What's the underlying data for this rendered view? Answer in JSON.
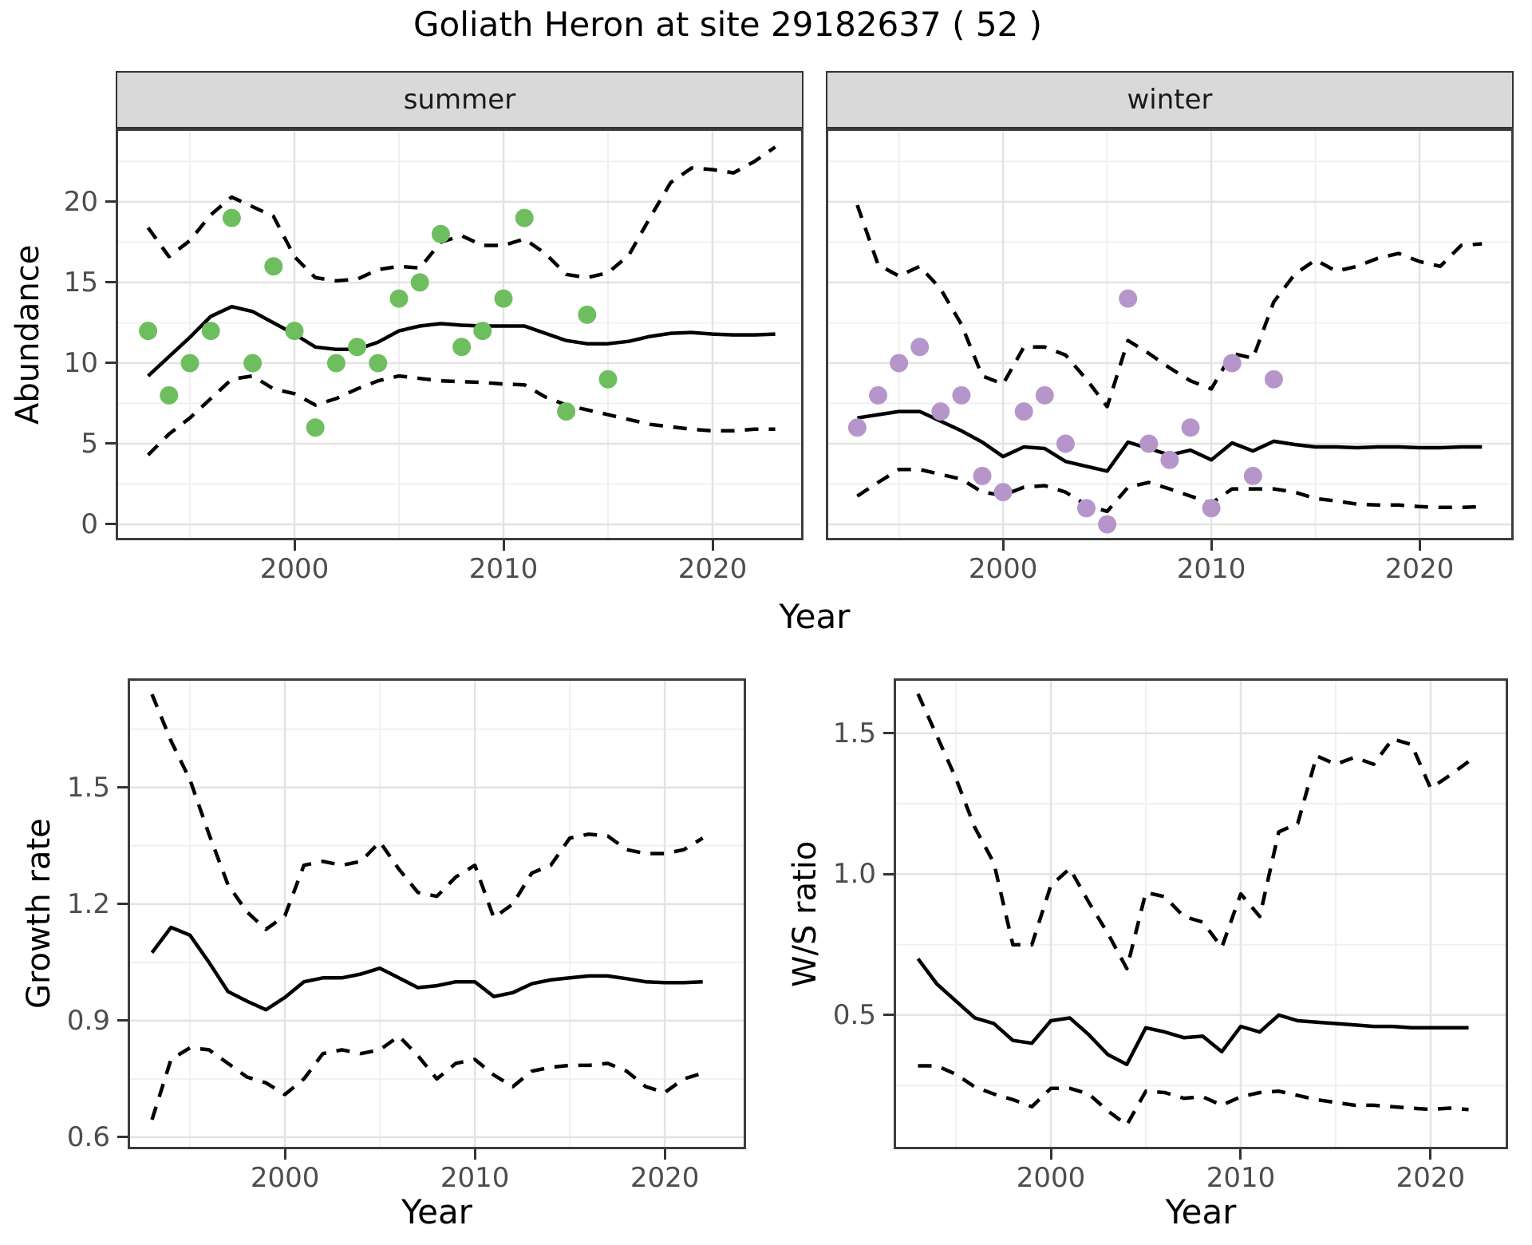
{
  "title": "Goliath Heron at site 29182637 ( 52 )",
  "colors": {
    "summer_points": "#6ebe5f",
    "winter_points": "#b696ca",
    "line": "#000000",
    "grid_major": "#e3e3e3",
    "grid_minor": "#f0f0f0",
    "panel_border": "#3d3d3d",
    "strip_background": "#d9d9d9",
    "tick_text": "#4d4d4d"
  },
  "chart_data": [
    {
      "id": "abundance-summer",
      "type": "line",
      "facet_label": "summer",
      "xlabel": "Year",
      "ylabel": "Abundance",
      "xlim": [
        1991.45,
        2024.35
      ],
      "ylim": [
        -0.99,
        24.55
      ],
      "x_ticks": {
        "values": [
          2000,
          2010,
          2020
        ],
        "labels": [
          "2000",
          "2010",
          "2020"
        ]
      },
      "x_minor": [
        1995,
        2005,
        2015
      ],
      "y_ticks": {
        "values": [
          0,
          5,
          10,
          15,
          20
        ],
        "labels": [
          "0",
          "5",
          "10",
          "15",
          "20"
        ]
      },
      "y_minor": [
        2.5,
        7.5,
        12.5,
        17.5,
        22.5
      ],
      "x": [
        1993,
        1994,
        1995,
        1996,
        1997,
        1998,
        1999,
        2000,
        2001,
        2002,
        2003,
        2004,
        2005,
        2006,
        2007,
        2008,
        2009,
        2010,
        2011,
        2012,
        2013,
        2014,
        2015,
        2016,
        2017,
        2018,
        2019,
        2020,
        2021,
        2022,
        2023
      ],
      "series": [
        {
          "name": "mean",
          "style": "solid",
          "values": [
            9.2,
            10.4,
            11.6,
            12.9,
            13.5,
            13.2,
            12.5,
            11.8,
            11.0,
            10.85,
            10.85,
            11.3,
            12.0,
            12.3,
            12.45,
            12.35,
            12.3,
            12.3,
            12.3,
            11.85,
            11.4,
            11.2,
            11.2,
            11.35,
            11.65,
            11.85,
            11.9,
            11.8,
            11.75,
            11.75,
            11.8
          ]
        },
        {
          "name": "upper_ci",
          "style": "dashed",
          "values": [
            18.4,
            16.6,
            17.6,
            19.2,
            20.3,
            19.7,
            19.1,
            16.6,
            15.3,
            15.1,
            15.2,
            15.8,
            16.0,
            15.9,
            17.5,
            17.9,
            17.3,
            17.3,
            17.7,
            16.8,
            15.5,
            15.3,
            15.6,
            16.7,
            19.0,
            21.2,
            22.1,
            22.0,
            21.8,
            22.5,
            23.4
          ]
        },
        {
          "name": "lower_ci",
          "style": "dashed",
          "values": [
            4.3,
            5.6,
            6.6,
            7.8,
            9.0,
            9.2,
            8.4,
            8.1,
            7.4,
            7.8,
            8.4,
            8.9,
            9.2,
            9.05,
            8.9,
            8.85,
            8.8,
            8.7,
            8.65,
            7.9,
            7.4,
            7.1,
            6.8,
            6.5,
            6.2,
            6.05,
            5.9,
            5.8,
            5.8,
            5.9,
            5.9
          ]
        }
      ],
      "points": {
        "color": "#6ebe5f",
        "data": [
          [
            1993,
            12
          ],
          [
            1994,
            8
          ],
          [
            1995,
            10
          ],
          [
            1996,
            12
          ],
          [
            1997,
            19
          ],
          [
            1998,
            10
          ],
          [
            1999,
            16
          ],
          [
            2000,
            12
          ],
          [
            2001,
            6
          ],
          [
            2002,
            10
          ],
          [
            2003,
            11
          ],
          [
            2004,
            10
          ],
          [
            2005,
            14
          ],
          [
            2006,
            15
          ],
          [
            2007,
            18
          ],
          [
            2008,
            11
          ],
          [
            2009,
            12
          ],
          [
            2010,
            14
          ],
          [
            2011,
            19
          ],
          [
            2013,
            7
          ],
          [
            2014,
            13
          ],
          [
            2015,
            9
          ]
        ]
      }
    },
    {
      "id": "abundance-winter",
      "type": "line",
      "facet_label": "winter",
      "xlabel": "Year",
      "ylabel": "Abundance",
      "xlim": [
        1991.49,
        2024.52
      ],
      "ylim": [
        -0.99,
        24.55
      ],
      "x_ticks": {
        "values": [
          2000,
          2010,
          2020
        ],
        "labels": [
          "2000",
          "2010",
          "2020"
        ]
      },
      "x_minor": [
        1995,
        2005,
        2015
      ],
      "y_ticks": {
        "values": [
          0,
          5,
          10,
          15,
          20
        ],
        "labels": [
          "0",
          "5",
          "10",
          "15",
          "20"
        ]
      },
      "y_minor": [
        2.5,
        7.5,
        12.5,
        17.5,
        22.5
      ],
      "x": [
        1993,
        1994,
        1995,
        1996,
        1997,
        1998,
        1999,
        2000,
        2001,
        2002,
        2003,
        2004,
        2005,
        2006,
        2007,
        2008,
        2009,
        2010,
        2011,
        2012,
        2013,
        2014,
        2015,
        2016,
        2017,
        2018,
        2019,
        2020,
        2021,
        2022,
        2023
      ],
      "series": [
        {
          "name": "mean",
          "style": "solid",
          "values": [
            6.6,
            6.8,
            7.0,
            7.0,
            6.4,
            5.8,
            5.1,
            4.2,
            4.8,
            4.7,
            3.9,
            3.6,
            3.3,
            5.1,
            4.7,
            4.3,
            4.6,
            4.0,
            5.05,
            4.55,
            5.15,
            4.95,
            4.8,
            4.8,
            4.75,
            4.8,
            4.8,
            4.75,
            4.75,
            4.8,
            4.8
          ]
        },
        {
          "name": "upper_ci",
          "style": "dashed",
          "values": [
            19.8,
            16.1,
            15.4,
            16.0,
            14.6,
            12.4,
            9.2,
            8.7,
            11.0,
            11.0,
            10.5,
            9.0,
            7.3,
            11.4,
            10.6,
            9.7,
            8.9,
            8.4,
            10.6,
            10.3,
            13.8,
            15.5,
            16.4,
            15.7,
            16.0,
            16.5,
            16.8,
            16.3,
            16.0,
            17.3,
            17.4
          ]
        },
        {
          "name": "lower_ci",
          "style": "dashed",
          "values": [
            1.75,
            2.6,
            3.4,
            3.4,
            3.1,
            2.8,
            2.0,
            1.8,
            2.3,
            2.4,
            2.0,
            1.2,
            0.8,
            2.3,
            2.6,
            2.2,
            1.75,
            1.3,
            2.2,
            2.2,
            2.2,
            2.0,
            1.6,
            1.45,
            1.25,
            1.2,
            1.2,
            1.1,
            1.05,
            1.05,
            1.1
          ]
        }
      ],
      "points": {
        "color": "#b696ca",
        "data": [
          [
            1993,
            6
          ],
          [
            1994,
            8
          ],
          [
            1995,
            10
          ],
          [
            1996,
            11
          ],
          [
            1997,
            7
          ],
          [
            1998,
            8
          ],
          [
            1999,
            3
          ],
          [
            2000,
            2
          ],
          [
            2001,
            7
          ],
          [
            2002,
            8
          ],
          [
            2003,
            5
          ],
          [
            2004,
            1
          ],
          [
            2005,
            0
          ],
          [
            2006,
            14
          ],
          [
            2007,
            5
          ],
          [
            2008,
            4
          ],
          [
            2009,
            6
          ],
          [
            2010,
            1
          ],
          [
            2011,
            10
          ],
          [
            2012,
            3
          ],
          [
            2013,
            9
          ]
        ]
      }
    },
    {
      "id": "growth-rate",
      "type": "line",
      "facet_label": "",
      "xlabel": "Year",
      "ylabel": "Growth rate",
      "xlim": [
        1991.72,
        2024.28
      ],
      "ylim": [
        0.569,
        1.781
      ],
      "x_ticks": {
        "values": [
          2000,
          2010,
          2020
        ],
        "labels": [
          "2000",
          "2010",
          "2020"
        ]
      },
      "x_minor": [
        1995,
        2005,
        2015
      ],
      "y_ticks": {
        "values": [
          0.6,
          0.9,
          1.2,
          1.5
        ],
        "labels": [
          "0.6",
          "0.9",
          "1.2",
          "1.5"
        ]
      },
      "y_minor": [
        0.75,
        1.05,
        1.35,
        1.65
      ],
      "x": [
        1993,
        1994,
        1995,
        1996,
        1997,
        1998,
        1999,
        2000,
        2001,
        2002,
        2003,
        2004,
        2005,
        2006,
        2007,
        2008,
        2009,
        2010,
        2011,
        2012,
        2013,
        2014,
        2015,
        2016,
        2017,
        2018,
        2019,
        2020,
        2021,
        2022
      ],
      "series": [
        {
          "name": "mean",
          "style": "solid",
          "values": [
            1.075,
            1.14,
            1.12,
            1.05,
            0.975,
            0.95,
            0.928,
            0.96,
            1.0,
            1.01,
            1.01,
            1.02,
            1.035,
            1.01,
            0.985,
            0.99,
            1.0,
            1.0,
            0.962,
            0.972,
            0.995,
            1.005,
            1.01,
            1.015,
            1.015,
            1.008,
            1.0,
            0.998,
            0.998,
            1.0
          ]
        },
        {
          "name": "upper_ci",
          "style": "dashed",
          "values": [
            1.74,
            1.62,
            1.52,
            1.38,
            1.25,
            1.18,
            1.135,
            1.17,
            1.3,
            1.31,
            1.3,
            1.31,
            1.36,
            1.29,
            1.23,
            1.22,
            1.27,
            1.3,
            1.165,
            1.2,
            1.28,
            1.3,
            1.37,
            1.38,
            1.375,
            1.34,
            1.33,
            1.33,
            1.34,
            1.37
          ]
        },
        {
          "name": "lower_ci",
          "style": "dashed",
          "values": [
            0.645,
            0.8,
            0.83,
            0.825,
            0.79,
            0.755,
            0.74,
            0.71,
            0.75,
            0.815,
            0.825,
            0.815,
            0.825,
            0.86,
            0.81,
            0.75,
            0.79,
            0.8,
            0.76,
            0.73,
            0.77,
            0.78,
            0.785,
            0.785,
            0.79,
            0.77,
            0.73,
            0.715,
            0.75,
            0.765
          ]
        }
      ],
      "points": {
        "color": "",
        "data": []
      }
    },
    {
      "id": "ws-ratio",
      "type": "line",
      "facet_label": "",
      "xlabel": "Year",
      "ylabel": "W/S ratio",
      "xlim": [
        1991.72,
        2024.08
      ],
      "ylim": [
        0.024,
        1.695
      ],
      "x_ticks": {
        "values": [
          2000,
          2010,
          2020
        ],
        "labels": [
          "2000",
          "2010",
          "2020"
        ]
      },
      "x_minor": [
        1995,
        2005,
        2015
      ],
      "y_ticks": {
        "values": [
          0.5,
          1.0,
          1.5
        ],
        "labels": [
          "0.5",
          "1.0",
          "1.5"
        ]
      },
      "y_minor": [
        0.25,
        0.75,
        1.25
      ],
      "x": [
        1993,
        1994,
        1995,
        1996,
        1997,
        1998,
        1999,
        2000,
        2001,
        2002,
        2003,
        2004,
        2005,
        2006,
        2007,
        2008,
        2009,
        2010,
        2011,
        2012,
        2013,
        2014,
        2015,
        2016,
        2017,
        2018,
        2019,
        2020,
        2021,
        2022
      ],
      "series": [
        {
          "name": "mean",
          "style": "solid",
          "values": [
            0.7,
            0.61,
            0.55,
            0.49,
            0.47,
            0.41,
            0.4,
            0.48,
            0.49,
            0.43,
            0.36,
            0.325,
            0.455,
            0.44,
            0.42,
            0.425,
            0.37,
            0.46,
            0.44,
            0.5,
            0.48,
            0.475,
            0.47,
            0.465,
            0.46,
            0.46,
            0.455,
            0.455,
            0.455,
            0.455
          ]
        },
        {
          "name": "upper_ci",
          "style": "dashed",
          "values": [
            1.64,
            1.49,
            1.34,
            1.165,
            1.04,
            0.75,
            0.75,
            0.96,
            1.02,
            0.9,
            0.79,
            0.665,
            0.935,
            0.92,
            0.85,
            0.83,
            0.74,
            0.93,
            0.85,
            1.15,
            1.18,
            1.42,
            1.39,
            1.415,
            1.39,
            1.48,
            1.46,
            1.305,
            1.35,
            1.4
          ]
        },
        {
          "name": "lower_ci",
          "style": "dashed",
          "values": [
            0.32,
            0.32,
            0.29,
            0.245,
            0.22,
            0.2,
            0.175,
            0.24,
            0.24,
            0.22,
            0.16,
            0.11,
            0.23,
            0.225,
            0.205,
            0.21,
            0.18,
            0.21,
            0.225,
            0.23,
            0.215,
            0.2,
            0.19,
            0.18,
            0.18,
            0.175,
            0.17,
            0.165,
            0.17,
            0.165
          ]
        }
      ],
      "points": {
        "color": "",
        "data": []
      }
    }
  ]
}
